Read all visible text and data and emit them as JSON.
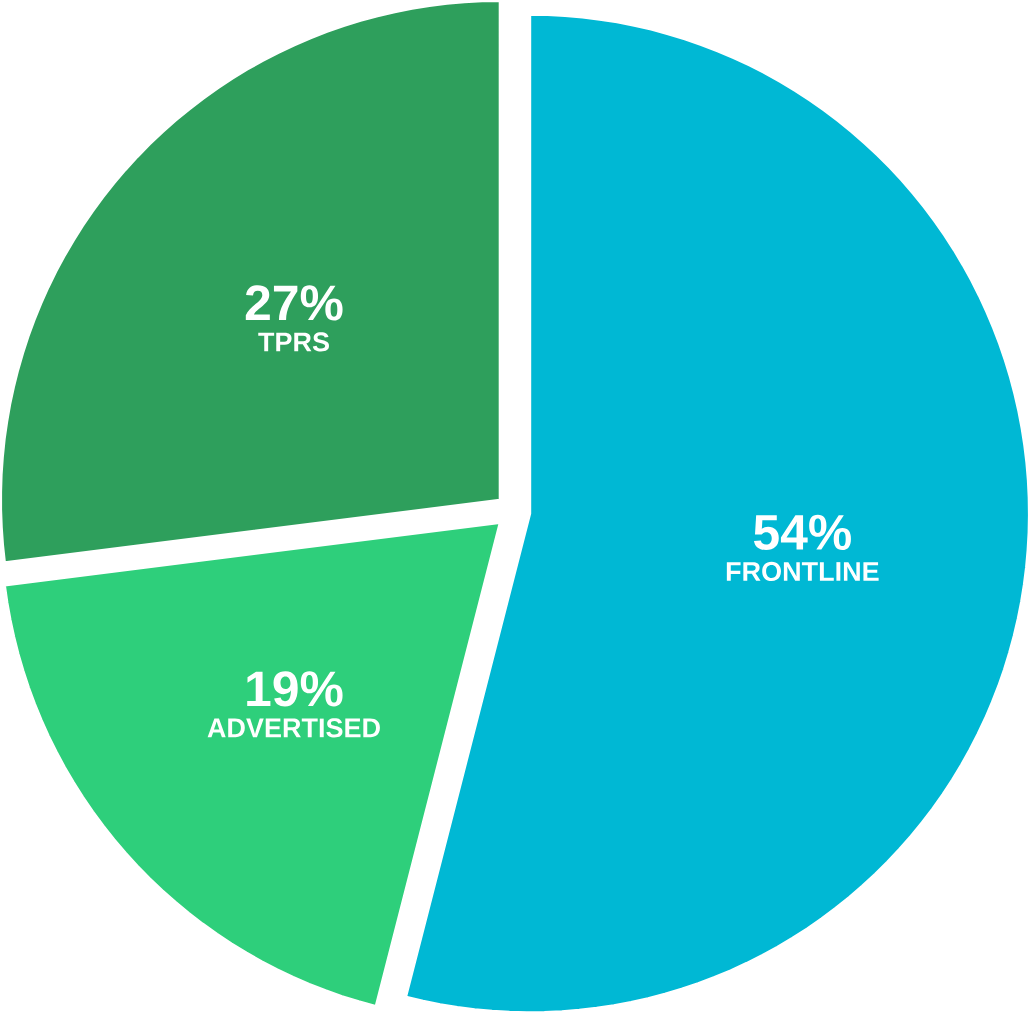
{
  "chart_data": {
    "type": "pie",
    "categories": [
      "FRONTLINE",
      "ADVERTISED",
      "TPRS"
    ],
    "values": [
      54,
      19,
      27
    ],
    "value_labels": [
      "54%",
      "19%",
      "27%"
    ],
    "colors": [
      "#00b8d4",
      "#2ecf7b",
      "#2e9f5c"
    ]
  }
}
